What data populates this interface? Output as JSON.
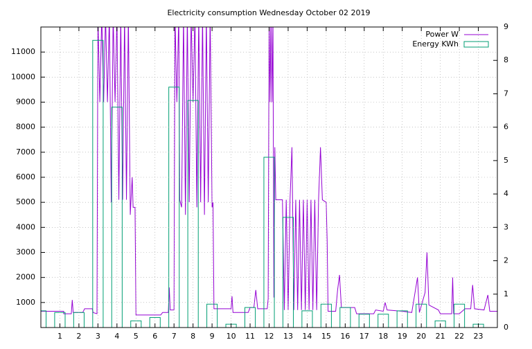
{
  "chart_data": {
    "type": "line",
    "title": "Electricity consumption Wednesday October 02 2019",
    "xlim": [
      0,
      24
    ],
    "xticks": [
      1,
      2,
      3,
      4,
      5,
      6,
      7,
      8,
      9,
      10,
      11,
      12,
      13,
      14,
      15,
      16,
      17,
      18,
      19,
      20,
      21,
      22,
      23
    ],
    "ylim": [
      0,
      12000
    ],
    "yticks": [
      1000,
      2000,
      3000,
      4000,
      5000,
      6000,
      7000,
      8000,
      9000,
      10000,
      11000
    ],
    "y2lim": [
      0,
      9
    ],
    "y2ticks": [
      0,
      1,
      2,
      3,
      4,
      5,
      6,
      7,
      8,
      9
    ],
    "grid": true,
    "legend": "top-right",
    "series": [
      {
        "name": "Power W",
        "color": "#9400d3",
        "type": "line",
        "x": [
          0,
          1.2,
          1.2,
          1.6,
          1.65,
          1.7,
          2.2,
          2.3,
          2.7,
          2.75,
          2.95,
          3.0,
          3.1,
          3.2,
          3.3,
          3.4,
          3.5,
          3.6,
          3.7,
          3.8,
          3.9,
          4.0,
          4.1,
          4.2,
          4.3,
          4.4,
          4.5,
          4.6,
          4.7,
          4.8,
          4.85,
          4.95,
          5.0,
          6.3,
          6.4,
          6.7,
          6.75,
          6.8,
          7.0,
          7.05,
          7.15,
          7.25,
          7.3,
          7.4,
          7.5,
          7.6,
          7.7,
          7.8,
          7.9,
          8.0,
          8.1,
          8.2,
          8.3,
          8.4,
          8.5,
          8.6,
          8.7,
          8.8,
          8.9,
          9.0,
          9.05,
          9.1,
          10.0,
          10.05,
          10.1,
          10.9,
          11.0,
          11.2,
          11.3,
          11.4,
          11.9,
          11.95,
          12.0,
          12.05,
          12.1,
          12.15,
          12.2,
          12.25,
          12.3,
          12.35,
          12.7,
          12.8,
          12.9,
          13.0,
          13.1,
          13.2,
          13.3,
          13.4,
          13.5,
          13.6,
          13.7,
          13.8,
          13.9,
          14.0,
          14.1,
          14.2,
          14.3,
          14.4,
          14.5,
          14.6,
          14.7,
          14.8,
          15.0,
          15.05,
          15.1,
          15.5,
          15.6,
          15.7,
          15.8,
          16.5,
          16.6,
          17.5,
          17.6,
          18.0,
          18.1,
          18.2,
          19.0,
          19.5,
          19.8,
          19.9,
          20.2,
          20.3,
          20.4,
          20.9,
          21.0,
          21.6,
          21.65,
          21.7,
          22.0,
          22.3,
          22.6,
          22.7,
          22.8,
          23.3,
          23.5,
          23.6,
          24
        ],
        "values": [
          650,
          650,
          550,
          550,
          1100,
          600,
          600,
          750,
          750,
          600,
          550,
          12500,
          9000,
          12500,
          9000,
          12500,
          9000,
          12500,
          5000,
          12500,
          9000,
          12500,
          5100,
          12500,
          5100,
          12500,
          5100,
          12500,
          4500,
          6000,
          4800,
          4800,
          500,
          500,
          600,
          600,
          1600,
          700,
          700,
          12500,
          9000,
          12500,
          5100,
          4800,
          12500,
          4500,
          12500,
          5000,
          12500,
          9000,
          12500,
          4800,
          12500,
          5000,
          12500,
          4500,
          12500,
          5000,
          12500,
          4800,
          5000,
          750,
          750,
          1250,
          600,
          600,
          800,
          800,
          1500,
          750,
          750,
          1150,
          12500,
          9000,
          12500,
          9000,
          12500,
          1200,
          7200,
          5100,
          5100,
          700,
          5100,
          700,
          5100,
          7200,
          700,
          5100,
          700,
          5100,
          700,
          5100,
          700,
          5100,
          700,
          5100,
          700,
          5100,
          700,
          5100,
          7200,
          5100,
          5000,
          3500,
          650,
          650,
          1500,
          2100,
          800,
          800,
          550,
          550,
          700,
          650,
          1000,
          700,
          650,
          600,
          2000,
          600,
          1400,
          3000,
          900,
          700,
          550,
          550,
          2000,
          550,
          550,
          750,
          750,
          1700,
          750,
          700,
          1300,
          650,
          650
        ]
      },
      {
        "name": "Energy KWh",
        "color": "#009e73",
        "type": "boxes",
        "axis": "y2",
        "x": [
          0,
          1,
          2,
          3,
          4,
          5,
          6,
          7,
          8,
          9,
          10,
          11,
          12,
          13,
          14,
          15,
          16,
          17,
          18,
          19,
          20,
          21,
          22,
          23
        ],
        "values": [
          0.5,
          0.45,
          0.45,
          8.6,
          6.6,
          0.2,
          0.3,
          7.2,
          6.8,
          0.7,
          0.1,
          0.6,
          5.1,
          3.3,
          0.5,
          0.7,
          0.6,
          0.4,
          0.4,
          0.5,
          0.7,
          0.2,
          0.7,
          0.1
        ]
      }
    ]
  }
}
